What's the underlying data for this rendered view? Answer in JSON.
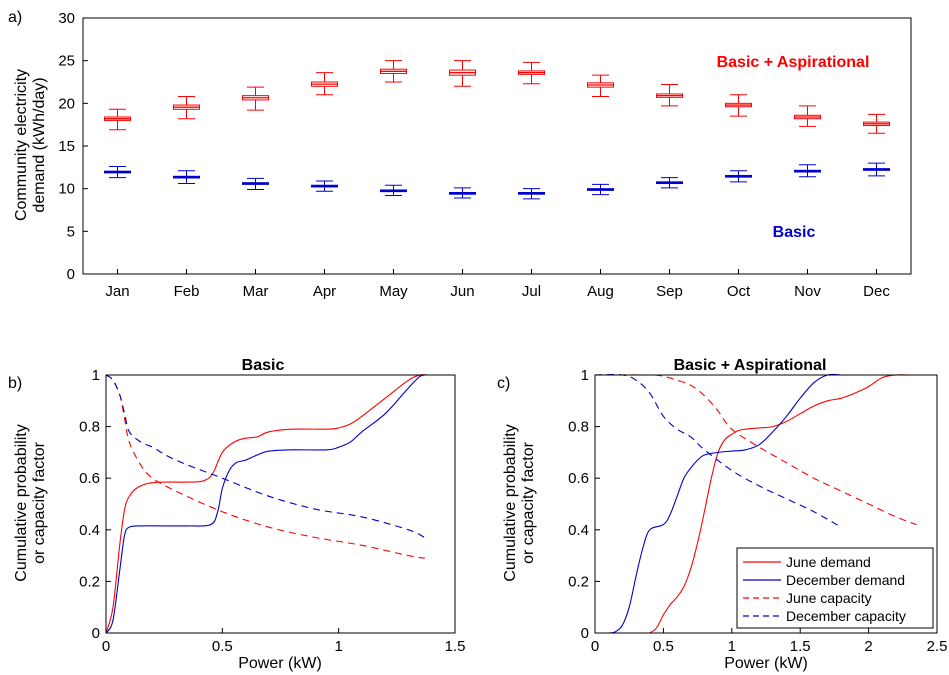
{
  "colors": {
    "red": "#ff0000",
    "blue": "#0000cc"
  },
  "chart_data": [
    {
      "panel": "a)",
      "type": "box",
      "title": "",
      "xlabel": "",
      "ylabel": "Community electricity demand (kWh/day)",
      "ylabel_lines": [
        "Community electricity",
        "demand (kWh/day)"
      ],
      "ylim": [
        0,
        30
      ],
      "yticks": [
        0,
        5,
        10,
        15,
        20,
        25,
        30
      ],
      "categories": [
        "Jan",
        "Feb",
        "Mar",
        "Apr",
        "May",
        "Jun",
        "Jul",
        "Aug",
        "Sep",
        "Oct",
        "Nov",
        "Dec"
      ],
      "series": [
        {
          "name": "Basic + Aspirational",
          "color": "#ff0000",
          "boxes": [
            {
              "whisker_low": 16.9,
              "q1": 18.0,
              "median": 18.2,
              "q3": 18.4,
              "whisker_high": 19.3
            },
            {
              "whisker_low": 18.2,
              "q1": 19.3,
              "median": 19.55,
              "q3": 19.8,
              "whisker_high": 20.8
            },
            {
              "whisker_low": 19.2,
              "q1": 20.4,
              "median": 20.65,
              "q3": 20.9,
              "whisker_high": 21.9
            },
            {
              "whisker_low": 21.0,
              "q1": 22.0,
              "median": 22.25,
              "q3": 22.5,
              "whisker_high": 23.6
            },
            {
              "whisker_low": 22.5,
              "q1": 23.5,
              "median": 23.75,
              "q3": 24.0,
              "whisker_high": 25.0
            },
            {
              "whisker_low": 22.0,
              "q1": 23.3,
              "median": 23.6,
              "q3": 23.9,
              "whisker_high": 25.0
            },
            {
              "whisker_low": 22.3,
              "q1": 23.4,
              "median": 23.6,
              "q3": 23.8,
              "whisker_high": 24.8
            },
            {
              "whisker_low": 20.8,
              "q1": 21.9,
              "median": 22.15,
              "q3": 22.4,
              "whisker_high": 23.3
            },
            {
              "whisker_low": 19.7,
              "q1": 20.7,
              "median": 20.9,
              "q3": 21.1,
              "whisker_high": 22.2
            },
            {
              "whisker_low": 18.5,
              "q1": 19.6,
              "median": 19.8,
              "q3": 20.0,
              "whisker_high": 21.0
            },
            {
              "whisker_low": 17.3,
              "q1": 18.2,
              "median": 18.4,
              "q3": 18.6,
              "whisker_high": 19.7
            },
            {
              "whisker_low": 16.5,
              "q1": 17.4,
              "median": 17.6,
              "q3": 17.8,
              "whisker_high": 18.7
            }
          ]
        },
        {
          "name": "Basic",
          "color": "#0000cc",
          "boxes": [
            {
              "whisker_low": 11.3,
              "q1": 11.85,
              "median": 11.95,
              "q3": 12.05,
              "whisker_high": 12.6
            },
            {
              "whisker_low": 10.6,
              "q1": 11.25,
              "median": 11.35,
              "q3": 11.45,
              "whisker_high": 12.1
            },
            {
              "whisker_low": 9.9,
              "q1": 10.5,
              "median": 10.6,
              "q3": 10.7,
              "whisker_high": 11.2
            },
            {
              "whisker_low": 9.7,
              "q1": 10.2,
              "median": 10.3,
              "q3": 10.4,
              "whisker_high": 10.9
            },
            {
              "whisker_low": 9.2,
              "q1": 9.65,
              "median": 9.75,
              "q3": 9.85,
              "whisker_high": 10.4
            },
            {
              "whisker_low": 8.9,
              "q1": 9.35,
              "median": 9.45,
              "q3": 9.55,
              "whisker_high": 10.1
            },
            {
              "whisker_low": 8.8,
              "q1": 9.35,
              "median": 9.45,
              "q3": 9.55,
              "whisker_high": 10.0
            },
            {
              "whisker_low": 9.3,
              "q1": 9.8,
              "median": 9.9,
              "q3": 10.0,
              "whisker_high": 10.5
            },
            {
              "whisker_low": 10.1,
              "q1": 10.6,
              "median": 10.7,
              "q3": 10.8,
              "whisker_high": 11.3
            },
            {
              "whisker_low": 10.8,
              "q1": 11.35,
              "median": 11.45,
              "q3": 11.55,
              "whisker_high": 12.1
            },
            {
              "whisker_low": 11.4,
              "q1": 11.95,
              "median": 12.05,
              "q3": 12.15,
              "whisker_high": 12.8
            },
            {
              "whisker_low": 11.5,
              "q1": 12.15,
              "median": 12.25,
              "q3": 12.35,
              "whisker_high": 13.0
            }
          ]
        }
      ],
      "annotations": [
        {
          "text": "Basic + Aspirational",
          "color": "#ff0000",
          "x": "Nov",
          "y": 24.8
        },
        {
          "text": "Basic",
          "color": "#0000cc",
          "x": "Oct",
          "y": 5.0
        }
      ]
    },
    {
      "panel": "b)",
      "type": "line",
      "title": "Basic",
      "xlabel": "Power (kW)",
      "ylabel": "Cumulative probability or capacity factor",
      "ylabel_lines": [
        "Cumulative probability",
        "or capacity factor"
      ],
      "xlim": [
        0,
        1.5
      ],
      "ylim": [
        0,
        1
      ],
      "xticks": [
        0,
        0.5,
        1,
        1.5
      ],
      "xtick_labels": [
        "0",
        "0.5",
        "1",
        "1.5"
      ],
      "yticks": [
        0,
        0.2,
        0.4,
        0.6,
        0.8,
        1
      ],
      "ytick_labels": [
        "0",
        "0.2",
        "0.4",
        "0.6",
        "0.8",
        "1"
      ],
      "series": [
        {
          "name": "June demand",
          "color": "#ff0000",
          "dash": "solid",
          "x": [
            0,
            0.03,
            0.06,
            0.08,
            0.1,
            0.13,
            0.18,
            0.25,
            0.35,
            0.42,
            0.46,
            0.5,
            0.55,
            0.6,
            0.65,
            0.7,
            0.8,
            0.95,
            1.0,
            1.05,
            1.1,
            1.2,
            1.3,
            1.35,
            1.38
          ],
          "y": [
            0,
            0.1,
            0.35,
            0.48,
            0.53,
            0.56,
            0.58,
            0.585,
            0.585,
            0.59,
            0.62,
            0.7,
            0.74,
            0.755,
            0.76,
            0.78,
            0.79,
            0.79,
            0.795,
            0.81,
            0.84,
            0.91,
            0.98,
            1.0,
            1.0
          ]
        },
        {
          "name": "December demand",
          "color": "#0000cc",
          "dash": "solid",
          "x": [
            0,
            0.03,
            0.06,
            0.08,
            0.1,
            0.15,
            0.25,
            0.35,
            0.45,
            0.48,
            0.5,
            0.53,
            0.56,
            0.6,
            0.65,
            0.7,
            0.8,
            0.95,
            1.0,
            1.05,
            1.1,
            1.2,
            1.3,
            1.35,
            1.38
          ],
          "y": [
            0,
            0.05,
            0.25,
            0.38,
            0.41,
            0.415,
            0.415,
            0.415,
            0.42,
            0.47,
            0.56,
            0.63,
            0.66,
            0.67,
            0.69,
            0.705,
            0.71,
            0.71,
            0.72,
            0.74,
            0.78,
            0.85,
            0.95,
            0.995,
            1.0
          ]
        },
        {
          "name": "June capacity",
          "color": "#ff0000",
          "dash": "dashed",
          "x": [
            0,
            0.03,
            0.06,
            0.08,
            0.1,
            0.15,
            0.2,
            0.3,
            0.5,
            0.7,
            0.9,
            1.1,
            1.3,
            1.37
          ],
          "y": [
            1.0,
            0.98,
            0.92,
            0.83,
            0.74,
            0.65,
            0.6,
            0.55,
            0.47,
            0.41,
            0.37,
            0.34,
            0.3,
            0.29
          ]
        },
        {
          "name": "December capacity",
          "color": "#0000cc",
          "dash": "dashed",
          "x": [
            0,
            0.03,
            0.06,
            0.08,
            0.1,
            0.15,
            0.2,
            0.3,
            0.5,
            0.7,
            0.9,
            1.1,
            1.3,
            1.37
          ],
          "y": [
            1.0,
            0.98,
            0.92,
            0.85,
            0.78,
            0.74,
            0.72,
            0.67,
            0.6,
            0.53,
            0.48,
            0.45,
            0.4,
            0.37
          ]
        }
      ]
    },
    {
      "panel": "c)",
      "type": "line",
      "title": "Basic + Aspirational",
      "xlabel": "Power (kW)",
      "ylabel": "Cumulative probability or capacity factor",
      "ylabel_lines": [
        "Cumulative probability",
        "or capacity factor"
      ],
      "xlim": [
        0,
        2.5
      ],
      "ylim": [
        0,
        1
      ],
      "xticks": [
        0,
        0.5,
        1,
        1.5,
        2,
        2.5
      ],
      "xtick_labels": [
        "0",
        "0.5",
        "1",
        "1.5",
        "2",
        "2.5"
      ],
      "yticks": [
        0,
        0.2,
        0.4,
        0.6,
        0.8,
        1
      ],
      "ytick_labels": [
        "0",
        "0.2",
        "0.4",
        "0.6",
        "0.8",
        "1"
      ],
      "series": [
        {
          "name": "June demand",
          "color": "#ff0000",
          "dash": "solid",
          "x": [
            0.4,
            0.45,
            0.5,
            0.55,
            0.6,
            0.65,
            0.7,
            0.75,
            0.8,
            0.85,
            0.9,
            0.95,
            1.0,
            1.05,
            1.1,
            1.2,
            1.3,
            1.4,
            1.5,
            1.6,
            1.7,
            1.8,
            1.9,
            2.0,
            2.1,
            2.2,
            2.3,
            2.35
          ],
          "y": [
            0,
            0.02,
            0.07,
            0.11,
            0.14,
            0.18,
            0.25,
            0.35,
            0.47,
            0.6,
            0.7,
            0.75,
            0.77,
            0.785,
            0.79,
            0.795,
            0.8,
            0.82,
            0.85,
            0.88,
            0.9,
            0.91,
            0.93,
            0.955,
            0.99,
            1.0,
            1.0,
            1.0
          ]
        },
        {
          "name": "December demand",
          "color": "#0000cc",
          "dash": "solid",
          "x": [
            0.1,
            0.15,
            0.2,
            0.25,
            0.3,
            0.35,
            0.4,
            0.5,
            0.55,
            0.6,
            0.65,
            0.7,
            0.75,
            0.8,
            0.9,
            1.0,
            1.1,
            1.2,
            1.3,
            1.4,
            1.5,
            1.6,
            1.7,
            1.8
          ],
          "y": [
            0,
            0.005,
            0.03,
            0.1,
            0.22,
            0.33,
            0.4,
            0.42,
            0.46,
            0.53,
            0.6,
            0.64,
            0.67,
            0.69,
            0.7,
            0.705,
            0.71,
            0.73,
            0.78,
            0.84,
            0.91,
            0.97,
            1.0,
            1.0
          ]
        },
        {
          "name": "June capacity",
          "color": "#ff0000",
          "dash": "dashed",
          "x": [
            0,
            0.4,
            0.5,
            0.6,
            0.7,
            0.8,
            0.9,
            1.0,
            1.2,
            1.4,
            1.6,
            1.8,
            2.0,
            2.2,
            2.35
          ],
          "y": [
            1.0,
            1.0,
            0.995,
            0.98,
            0.96,
            0.92,
            0.86,
            0.79,
            0.72,
            0.66,
            0.6,
            0.55,
            0.5,
            0.45,
            0.42
          ]
        },
        {
          "name": "December capacity",
          "color": "#0000cc",
          "dash": "dashed",
          "x": [
            0,
            0.2,
            0.3,
            0.4,
            0.5,
            0.6,
            0.7,
            0.8,
            1.0,
            1.2,
            1.4,
            1.6,
            1.8
          ],
          "y": [
            1.0,
            1.0,
            0.98,
            0.93,
            0.84,
            0.79,
            0.76,
            0.71,
            0.63,
            0.57,
            0.52,
            0.47,
            0.41
          ]
        }
      ],
      "legend": {
        "placement": "bottom-right",
        "entries": [
          "June demand",
          "December demand",
          "June capacity",
          "December capacity"
        ]
      }
    }
  ]
}
